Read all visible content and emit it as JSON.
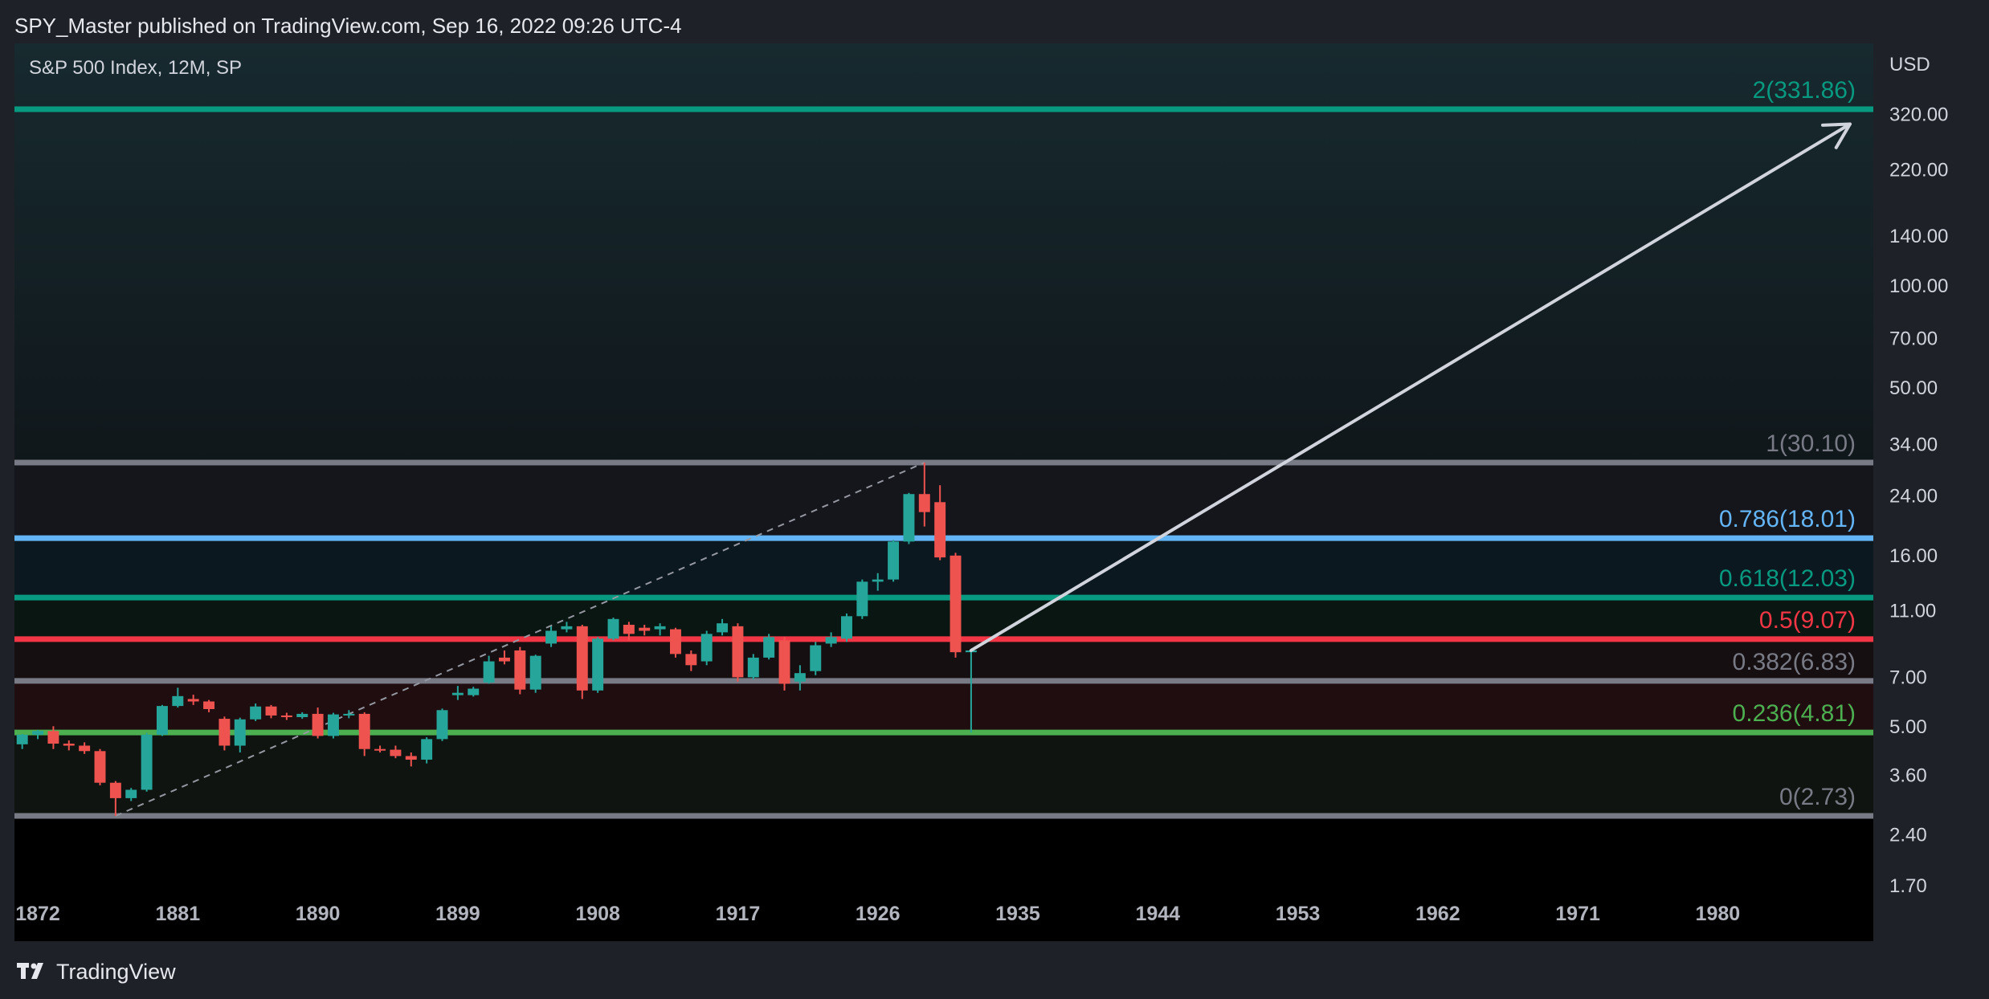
{
  "header": {
    "publisher_line": "SPY_Master published on TradingView.com, Sep 16, 2022 09:26 UTC-4"
  },
  "footer": {
    "brand": "TradingView",
    "logo_icon": "tradingview-logo-icon"
  },
  "chart_data": {
    "type": "candlestick",
    "title": "S&P 500 Index, 12M, SP",
    "currency_label": "USD",
    "y_scale": "log",
    "ylim": [
      1.5,
      400
    ],
    "xlim": [
      1870.5,
      1990
    ],
    "x_ticks": [
      "1872",
      "1881",
      "1890",
      "1899",
      "1908",
      "1917",
      "1926",
      "1935",
      "1944",
      "1953",
      "1962",
      "1971",
      "1980"
    ],
    "y_ticks": [
      "320.00",
      "220.00",
      "140.00",
      "100.00",
      "70.00",
      "50.00",
      "34.00",
      "24.00",
      "16.00",
      "11.00",
      "7.00",
      "5.00",
      "3.60",
      "2.40",
      "1.70"
    ],
    "colors": {
      "up": "#26a69a",
      "down": "#ef5350",
      "grid_bg": "#000000",
      "arrow": "#d1d4dc"
    },
    "fib_levels": [
      {
        "label": "2(331.86)",
        "level": 2,
        "price": 331.86,
        "color": "#089981"
      },
      {
        "label": "1(30.10)",
        "level": 1,
        "price": 30.1,
        "color": "#787b86"
      },
      {
        "label": "0.786(18.01)",
        "level": 0.786,
        "price": 18.01,
        "color": "#64b5f6"
      },
      {
        "label": "0.618(12.03)",
        "level": 0.618,
        "price": 12.03,
        "color": "#089981"
      },
      {
        "label": "0.5(9.07)",
        "level": 0.5,
        "price": 9.07,
        "color": "#f23645"
      },
      {
        "label": "0.382(6.83)",
        "level": 0.382,
        "price": 6.83,
        "color": "#787b86"
      },
      {
        "label": "0.236(4.81)",
        "level": 0.236,
        "price": 4.81,
        "color": "#4caf50"
      },
      {
        "label": "0(2.73)",
        "level": 0,
        "price": 2.73,
        "color": "#787b86"
      }
    ],
    "trend_line": {
      "from": [
        1877,
        2.73
      ],
      "to": [
        1929,
        30.1
      ]
    },
    "projection_arrow": {
      "from": [
        1932,
        8.4
      ],
      "to": [
        1988.5,
        300
      ]
    },
    "candles": [
      {
        "year": 1871,
        "open": 4.44,
        "high": 4.76,
        "low": 4.3,
        "close": 4.74
      },
      {
        "year": 1872,
        "open": 4.74,
        "high": 4.9,
        "low": 4.6,
        "close": 4.86
      },
      {
        "year": 1873,
        "open": 4.86,
        "high": 5.02,
        "low": 4.3,
        "close": 4.46
      },
      {
        "year": 1874,
        "open": 4.46,
        "high": 4.56,
        "low": 4.26,
        "close": 4.4
      },
      {
        "year": 1875,
        "open": 4.4,
        "high": 4.5,
        "low": 4.16,
        "close": 4.24
      },
      {
        "year": 1876,
        "open": 4.24,
        "high": 4.3,
        "low": 3.36,
        "close": 3.42
      },
      {
        "year": 1877,
        "open": 3.42,
        "high": 3.46,
        "low": 2.73,
        "close": 3.08
      },
      {
        "year": 1878,
        "open": 3.08,
        "high": 3.3,
        "low": 3.02,
        "close": 3.26
      },
      {
        "year": 1879,
        "open": 3.26,
        "high": 4.8,
        "low": 3.22,
        "close": 4.74
      },
      {
        "year": 1880,
        "open": 4.74,
        "high": 5.8,
        "low": 4.7,
        "close": 5.76
      },
      {
        "year": 1881,
        "open": 5.76,
        "high": 6.52,
        "low": 5.7,
        "close": 6.16
      },
      {
        "year": 1882,
        "open": 6.04,
        "high": 6.22,
        "low": 5.8,
        "close": 5.94
      },
      {
        "year": 1883,
        "open": 5.94,
        "high": 6.0,
        "low": 5.52,
        "close": 5.64
      },
      {
        "year": 1884,
        "open": 5.28,
        "high": 5.36,
        "low": 4.26,
        "close": 4.4
      },
      {
        "year": 1885,
        "open": 4.4,
        "high": 5.32,
        "low": 4.2,
        "close": 5.26
      },
      {
        "year": 1886,
        "open": 5.26,
        "high": 5.86,
        "low": 5.2,
        "close": 5.74
      },
      {
        "year": 1887,
        "open": 5.74,
        "high": 5.8,
        "low": 5.3,
        "close": 5.4
      },
      {
        "year": 1888,
        "open": 5.4,
        "high": 5.5,
        "low": 5.24,
        "close": 5.34
      },
      {
        "year": 1889,
        "open": 5.34,
        "high": 5.52,
        "low": 5.28,
        "close": 5.46
      },
      {
        "year": 1890,
        "open": 5.46,
        "high": 5.7,
        "low": 4.62,
        "close": 4.7
      },
      {
        "year": 1891,
        "open": 4.7,
        "high": 5.5,
        "low": 4.62,
        "close": 5.44
      },
      {
        "year": 1892,
        "open": 5.44,
        "high": 5.6,
        "low": 5.3,
        "close": 5.46
      },
      {
        "year": 1893,
        "open": 5.46,
        "high": 5.52,
        "low": 4.1,
        "close": 4.3
      },
      {
        "year": 1894,
        "open": 4.3,
        "high": 4.4,
        "low": 4.2,
        "close": 4.28
      },
      {
        "year": 1895,
        "open": 4.28,
        "high": 4.4,
        "low": 4.04,
        "close": 4.1
      },
      {
        "year": 1896,
        "open": 4.1,
        "high": 4.2,
        "low": 3.82,
        "close": 4.0
      },
      {
        "year": 1897,
        "open": 4.0,
        "high": 4.66,
        "low": 3.9,
        "close": 4.6
      },
      {
        "year": 1898,
        "open": 4.6,
        "high": 5.66,
        "low": 4.54,
        "close": 5.6
      },
      {
        "year": 1899,
        "open": 6.2,
        "high": 6.6,
        "low": 6.0,
        "close": 6.3
      },
      {
        "year": 1900,
        "open": 6.2,
        "high": 6.56,
        "low": 6.14,
        "close": 6.48
      },
      {
        "year": 1901,
        "open": 6.76,
        "high": 8.1,
        "low": 6.7,
        "close": 7.8
      },
      {
        "year": 1902,
        "open": 8.0,
        "high": 8.4,
        "low": 7.64,
        "close": 7.8
      },
      {
        "year": 1903,
        "open": 8.4,
        "high": 8.6,
        "low": 6.24,
        "close": 6.44
      },
      {
        "year": 1904,
        "open": 6.44,
        "high": 8.16,
        "low": 6.3,
        "close": 8.1
      },
      {
        "year": 1905,
        "open": 8.8,
        "high": 9.9,
        "low": 8.6,
        "close": 9.6
      },
      {
        "year": 1906,
        "open": 9.7,
        "high": 10.2,
        "low": 9.5,
        "close": 9.9
      },
      {
        "year": 1907,
        "open": 9.9,
        "high": 10.0,
        "low": 6.04,
        "close": 6.4
      },
      {
        "year": 1908,
        "open": 6.4,
        "high": 9.2,
        "low": 6.3,
        "close": 9.1
      },
      {
        "year": 1909,
        "open": 9.1,
        "high": 10.5,
        "low": 9.0,
        "close": 10.4
      },
      {
        "year": 1910,
        "open": 10.0,
        "high": 10.2,
        "low": 9.0,
        "close": 9.4
      },
      {
        "year": 1911,
        "open": 9.8,
        "high": 10.0,
        "low": 9.3,
        "close": 9.6
      },
      {
        "year": 1912,
        "open": 9.7,
        "high": 10.1,
        "low": 9.3,
        "close": 9.9
      },
      {
        "year": 1913,
        "open": 9.7,
        "high": 9.8,
        "low": 8.0,
        "close": 8.2
      },
      {
        "year": 1914,
        "open": 8.2,
        "high": 8.4,
        "low": 7.3,
        "close": 7.6
      },
      {
        "year": 1915,
        "open": 7.8,
        "high": 9.6,
        "low": 7.6,
        "close": 9.4
      },
      {
        "year": 1916,
        "open": 9.5,
        "high": 10.4,
        "low": 9.3,
        "close": 10.1
      },
      {
        "year": 1917,
        "open": 9.9,
        "high": 10.1,
        "low": 6.8,
        "close": 7.0
      },
      {
        "year": 1918,
        "open": 7.0,
        "high": 8.2,
        "low": 6.9,
        "close": 8.0
      },
      {
        "year": 1919,
        "open": 8.0,
        "high": 9.4,
        "low": 7.9,
        "close": 9.2
      },
      {
        "year": 1920,
        "open": 9.0,
        "high": 9.2,
        "low": 6.4,
        "close": 6.7
      },
      {
        "year": 1921,
        "open": 6.8,
        "high": 7.6,
        "low": 6.4,
        "close": 7.2
      },
      {
        "year": 1922,
        "open": 7.3,
        "high": 8.9,
        "low": 7.1,
        "close": 8.7
      },
      {
        "year": 1923,
        "open": 8.8,
        "high": 9.5,
        "low": 8.6,
        "close": 9.2
      },
      {
        "year": 1924,
        "open": 9.1,
        "high": 10.8,
        "low": 8.9,
        "close": 10.6
      },
      {
        "year": 1925,
        "open": 10.6,
        "high": 13.6,
        "low": 10.4,
        "close": 13.4
      },
      {
        "year": 1926,
        "open": 13.4,
        "high": 14.2,
        "low": 12.6,
        "close": 13.6
      },
      {
        "year": 1927,
        "open": 13.6,
        "high": 17.8,
        "low": 13.4,
        "close": 17.6
      },
      {
        "year": 1928,
        "open": 17.6,
        "high": 24.5,
        "low": 17.3,
        "close": 24.3
      },
      {
        "year": 1929,
        "open": 24.3,
        "high": 30.1,
        "low": 19.5,
        "close": 21.5
      },
      {
        "year": 1930,
        "open": 23.0,
        "high": 25.8,
        "low": 15.5,
        "close": 15.8
      },
      {
        "year": 1931,
        "open": 16.0,
        "high": 16.3,
        "low": 8.0,
        "close": 8.3
      },
      {
        "year": 1932,
        "open": 8.3,
        "high": 8.4,
        "low": 4.81,
        "close": 8.4
      }
    ]
  }
}
